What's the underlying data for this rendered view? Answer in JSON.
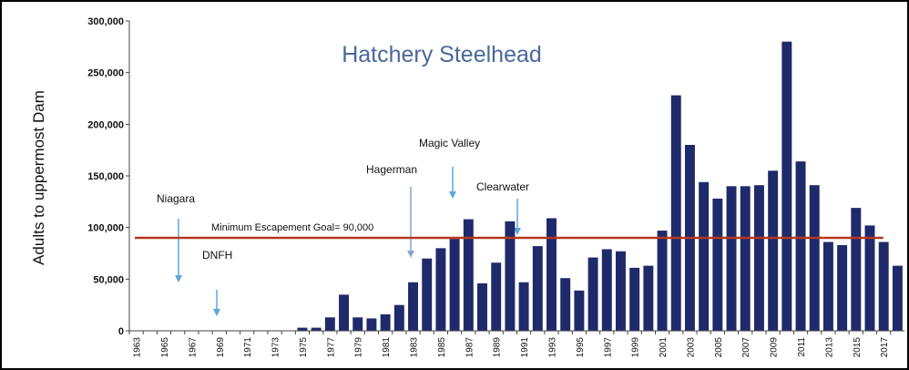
{
  "chart_data": {
    "type": "bar",
    "title": "Hatchery Steelhead",
    "y_label": "Adults to uppermost Dam",
    "categories": [
      "1963",
      null,
      "1965",
      null,
      "1967",
      null,
      "1969",
      null,
      "1971",
      null,
      "1973",
      null,
      "1975",
      null,
      "1977",
      null,
      "1979",
      null,
      "1981",
      null,
      "1983",
      null,
      "1985",
      null,
      "1987",
      null,
      "1989",
      null,
      "1991",
      null,
      "1993",
      null,
      "1995",
      null,
      "1997",
      null,
      "1999",
      null,
      "2001",
      null,
      "2003",
      null,
      "2005",
      null,
      "2007",
      null,
      "2009",
      null,
      "2011",
      null,
      "2013",
      null,
      "2015",
      null,
      "2017",
      null
    ],
    "values": [
      null,
      null,
      null,
      null,
      null,
      null,
      null,
      null,
      null,
      null,
      null,
      null,
      3000,
      3000,
      13000,
      35000,
      13000,
      12000,
      16000,
      25000,
      47000,
      70000,
      80000,
      89000,
      108000,
      46000,
      66000,
      106000,
      47000,
      82000,
      109000,
      51000,
      39000,
      71000,
      79000,
      77000,
      61000,
      63000,
      97000,
      228000,
      180000,
      144000,
      128000,
      140000,
      140000,
      141000,
      155000,
      280000,
      164000,
      141000,
      86000,
      83000,
      119000,
      102000,
      86000,
      63000
    ],
    "color": "#1f2a6b",
    "ylim": [
      0,
      300000
    ],
    "yticks": [
      0,
      {
        "value": 50000,
        "label": "50,000"
      },
      {
        "value": 100000,
        "label": "100,000"
      },
      {
        "value": 150000,
        "label": "150,000"
      },
      {
        "value": 200000,
        "label": "200,000"
      },
      {
        "value": 250000,
        "label": "250,000"
      },
      {
        "value": 300000,
        "label": "300,000"
      }
    ],
    "reference_line": {
      "value": 90000,
      "label": "Minimum Escapement Goal= 90,000",
      "color": "#b5381f"
    },
    "annotations": [
      "Niagara",
      "DNFH",
      "Hagerman",
      "Magic Valley",
      "Clearwater"
    ]
  }
}
